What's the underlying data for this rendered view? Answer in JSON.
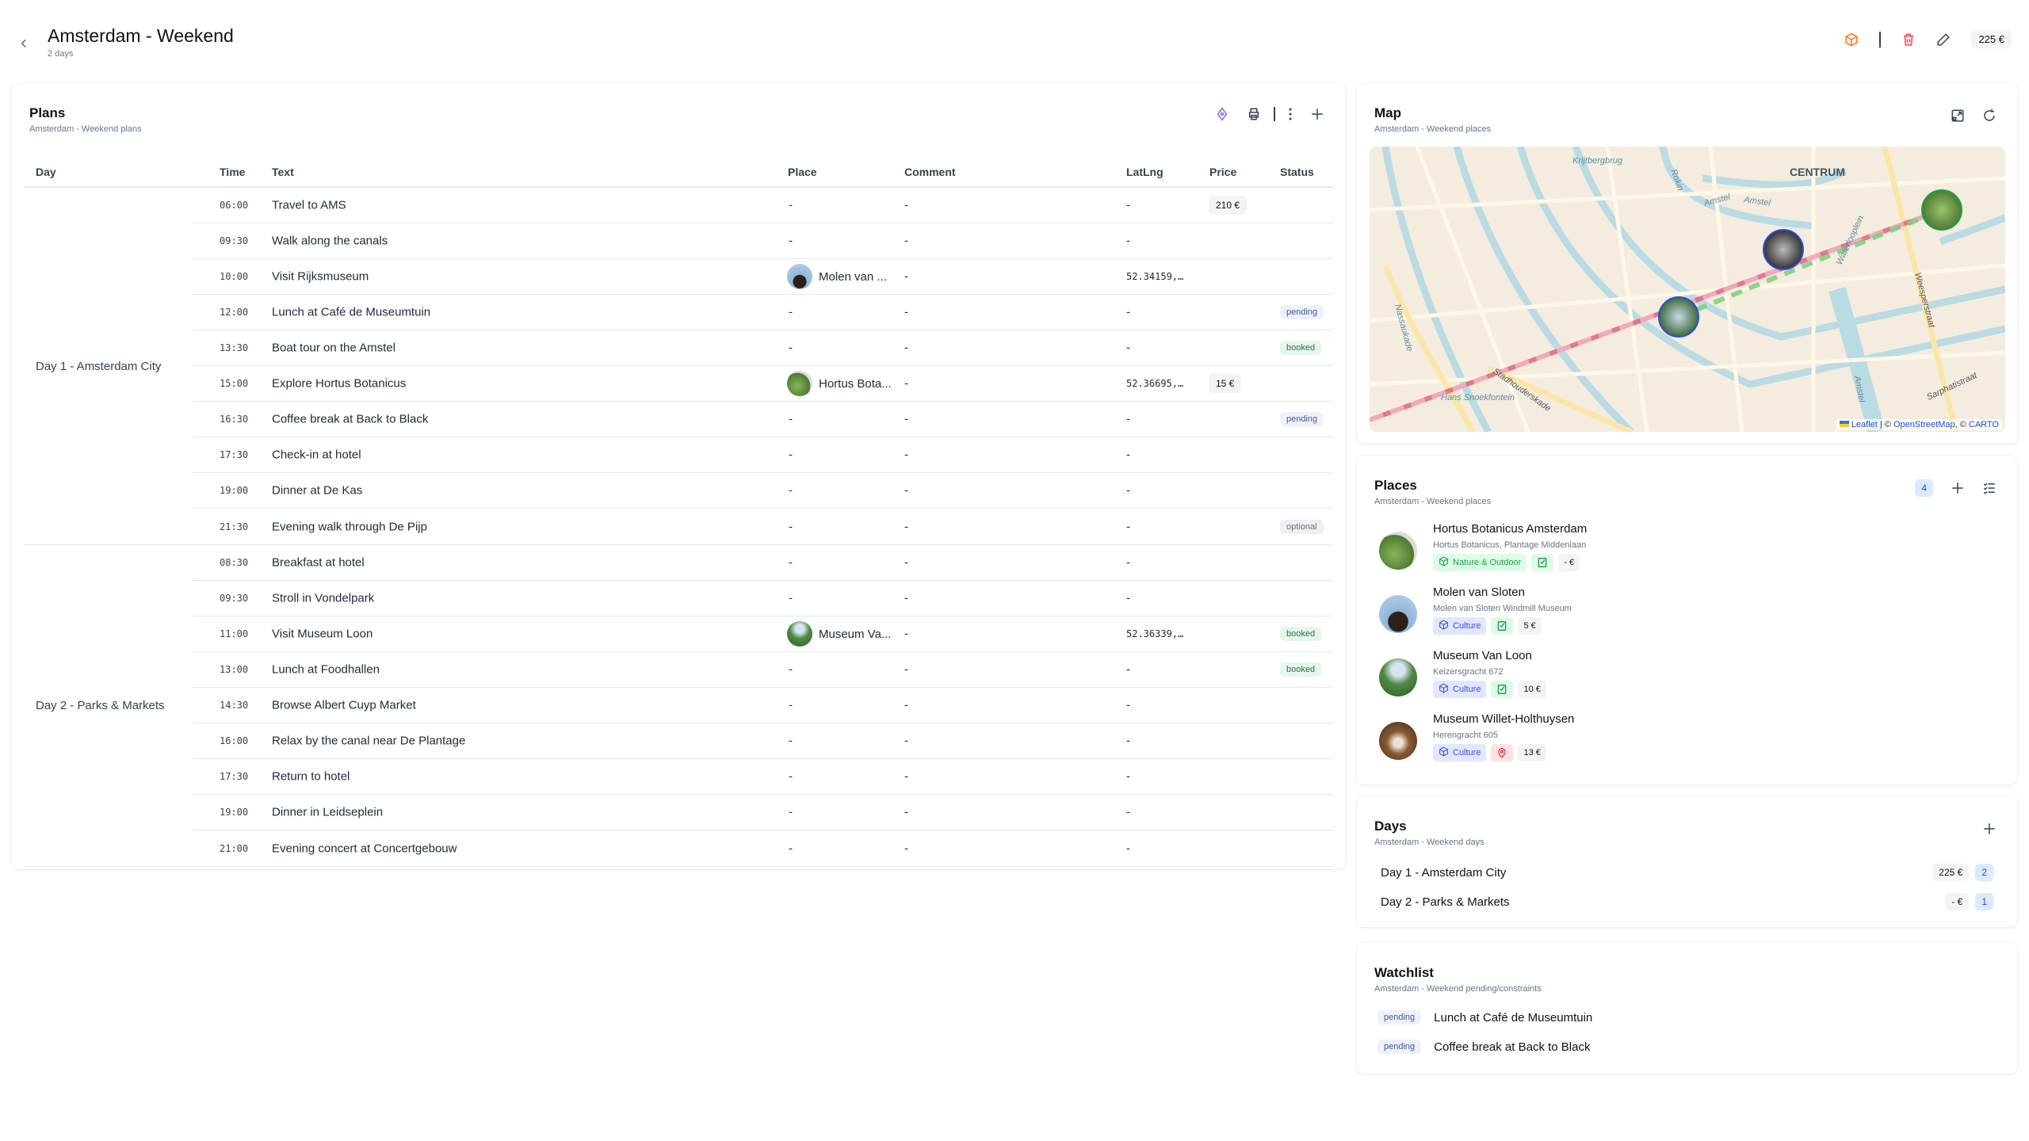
{
  "header": {
    "title": "Amsterdam - Weekend",
    "subtitle": "2 days",
    "total_price": "225 €"
  },
  "plans": {
    "title": "Plans",
    "subtitle": "Amsterdam - Weekend plans",
    "columns": [
      "Day",
      "Time",
      "Text",
      "Place",
      "Comment",
      "LatLng",
      "Price",
      "Status"
    ],
    "groups": [
      {
        "day": "Day 1 - Amsterdam City",
        "rows": [
          {
            "time": "06:00",
            "text": "Travel to AMS",
            "place": "-",
            "comment": "-",
            "latlng": "-",
            "price": "210 €",
            "status": ""
          },
          {
            "time": "09:30",
            "text": "Walk along the canals",
            "place": "-",
            "comment": "-",
            "latlng": "-",
            "price": "",
            "status": ""
          },
          {
            "time": "10:00",
            "text": "Visit Rijksmuseum",
            "place": "Molen van ...",
            "place_img": "windmill",
            "comment": "-",
            "latlng": "52.34159,…",
            "price": "",
            "status": ""
          },
          {
            "time": "12:00",
            "text": "Lunch at Café de Museumtuin",
            "place": "-",
            "comment": "-",
            "latlng": "-",
            "price": "",
            "status": "pending"
          },
          {
            "time": "13:30",
            "text": "Boat tour on the Amstel",
            "place": "-",
            "comment": "-",
            "latlng": "-",
            "price": "",
            "status": "booked"
          },
          {
            "time": "15:00",
            "text": "Explore Hortus Botanicus",
            "place": "Hortus Bota...",
            "place_img": "garden",
            "comment": "-",
            "latlng": "52.36695,…",
            "price": "15 €",
            "status": ""
          },
          {
            "time": "16:30",
            "text": "Coffee break at Back to Black",
            "place": "-",
            "comment": "-",
            "latlng": "-",
            "price": "",
            "status": "pending"
          },
          {
            "time": "17:30",
            "text": "Check-in at hotel",
            "place": "-",
            "comment": "-",
            "latlng": "-",
            "price": "",
            "status": ""
          },
          {
            "time": "19:00",
            "text": "Dinner at De Kas",
            "place": "-",
            "comment": "-",
            "latlng": "-",
            "price": "",
            "status": ""
          },
          {
            "time": "21:30",
            "text": "Evening walk through De Pijp",
            "place": "-",
            "comment": "-",
            "latlng": "-",
            "price": "",
            "status": "optional"
          }
        ]
      },
      {
        "day": "Day 2 - Parks & Markets",
        "rows": [
          {
            "time": "08:30",
            "text": "Breakfast at hotel",
            "place": "-",
            "comment": "-",
            "latlng": "-",
            "price": "",
            "status": ""
          },
          {
            "time": "09:30",
            "text": "Stroll in Vondelpark",
            "place": "-",
            "comment": "-",
            "latlng": "-",
            "price": "",
            "status": ""
          },
          {
            "time": "11:00",
            "text": "Visit Museum Loon",
            "place": "Museum Va...",
            "place_img": "museum",
            "comment": "-",
            "latlng": "52.36339,…",
            "price": "",
            "status": "booked"
          },
          {
            "time": "13:00",
            "text": "Lunch at Foodhallen",
            "place": "-",
            "comment": "-",
            "latlng": "-",
            "price": "",
            "status": "booked"
          },
          {
            "time": "14:30",
            "text": "Browse Albert Cuyp Market",
            "place": "-",
            "comment": "-",
            "latlng": "-",
            "price": "",
            "status": ""
          },
          {
            "time": "16:00",
            "text": "Relax by the canal near De Plantage",
            "place": "-",
            "comment": "-",
            "latlng": "-",
            "price": "",
            "status": ""
          },
          {
            "time": "17:30",
            "text": "Return to hotel",
            "place": "-",
            "comment": "-",
            "latlng": "-",
            "price": "",
            "status": ""
          },
          {
            "time": "19:00",
            "text": "Dinner in Leidseplein",
            "place": "-",
            "comment": "-",
            "latlng": "-",
            "price": "",
            "status": ""
          },
          {
            "time": "21:00",
            "text": "Evening concert at Concertgebouw",
            "place": "-",
            "comment": "-",
            "latlng": "-",
            "price": "",
            "status": ""
          }
        ]
      }
    ]
  },
  "map": {
    "title": "Map",
    "subtitle": "Amsterdam - Weekend places",
    "labels": [
      "CENTRUM",
      "Krijtbergbrug",
      "Rokin",
      "Amstel",
      "Amstel",
      "Waterlooplein",
      "Nassaukade",
      "Hans Snoekfontein",
      "Stadhouderskade",
      "Weesperstraat",
      "Sarphatistraat",
      "Amstel"
    ],
    "attribution": {
      "leaflet": "Leaflet",
      "sep1": " | © ",
      "osm": "OpenStreetMap",
      "sep2": ", © ",
      "carto": "CARTO"
    }
  },
  "places": {
    "title": "Places",
    "subtitle": "Amsterdam - Weekend places",
    "count": "4",
    "items": [
      {
        "name": "Hortus Botanicus Amsterdam",
        "address": "Hortus Botanicus, Plantage Middenlaan",
        "category": "Nature & Outdoor",
        "status_icon": "check-icon",
        "price": "- €",
        "img": "garden"
      },
      {
        "name": "Molen van Sloten",
        "address": "Molen van Sloten Windmill Museum",
        "category": "Culture",
        "status_icon": "check-icon",
        "price": "5 €",
        "img": "windmill"
      },
      {
        "name": "Museum Van Loon",
        "address": "Keizersgracht 672",
        "category": "Culture",
        "status_icon": "check-icon",
        "price": "10 €",
        "img": "museum"
      },
      {
        "name": "Museum Willet-Holthuysen",
        "address": "Herengracht 605",
        "category": "Culture",
        "status_icon": "pin-icon",
        "price": "13 €",
        "img": "interior"
      }
    ]
  },
  "days": {
    "title": "Days",
    "subtitle": "Amsterdam - Weekend days",
    "items": [
      {
        "label": "Day 1 - Amsterdam City",
        "price": "225 €",
        "count": "2"
      },
      {
        "label": "Day 2 - Parks & Markets",
        "price": "- €",
        "count": "1"
      }
    ]
  },
  "watchlist": {
    "title": "Watchlist",
    "subtitle": "Amsterdam - Weekend pending/constraints",
    "items": [
      {
        "status": "pending",
        "text": "Lunch at Café de Museumtuin"
      },
      {
        "status": "pending",
        "text": "Coffee break at Back to Black"
      }
    ]
  },
  "colors": {
    "accent": "#8b5cf6",
    "route_red": "#e05a78",
    "route_green": "#7ccf7c",
    "danger": "#ef4444",
    "orange": "#f97316"
  }
}
